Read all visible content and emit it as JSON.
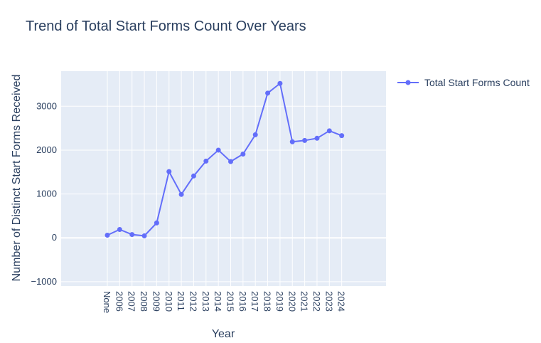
{
  "chart_data": {
    "type": "line",
    "title": "Trend of Total Start Forms Count Over Years",
    "xlabel": "Year",
    "ylabel": "Number of Distinct Start Forms Received",
    "categories": [
      "None",
      "2006",
      "2007",
      "2008",
      "2009",
      "2010",
      "2011",
      "2012",
      "2013",
      "2014",
      "2015",
      "2016",
      "2017",
      "2018",
      "2019",
      "2020",
      "2021",
      "2022",
      "2023",
      "2024"
    ],
    "series": [
      {
        "name": "Total Start Forms Count",
        "color": "#636efa",
        "values": [
          60,
          190,
          75,
          45,
          340,
          1510,
          990,
          1410,
          1750,
          2000,
          1740,
          1910,
          2350,
          3300,
          3520,
          2190,
          2220,
          2270,
          2440,
          2330
        ]
      }
    ],
    "ylim": [
      -1100,
      3800
    ],
    "yticks": [
      -1000,
      0,
      1000,
      2000,
      3000
    ],
    "yticklabels": [
      "−1000",
      "0",
      "1000",
      "2000",
      "3000"
    ],
    "grid": true,
    "legend_position": "top-right",
    "plot_bg": "#e5ecf6"
  }
}
